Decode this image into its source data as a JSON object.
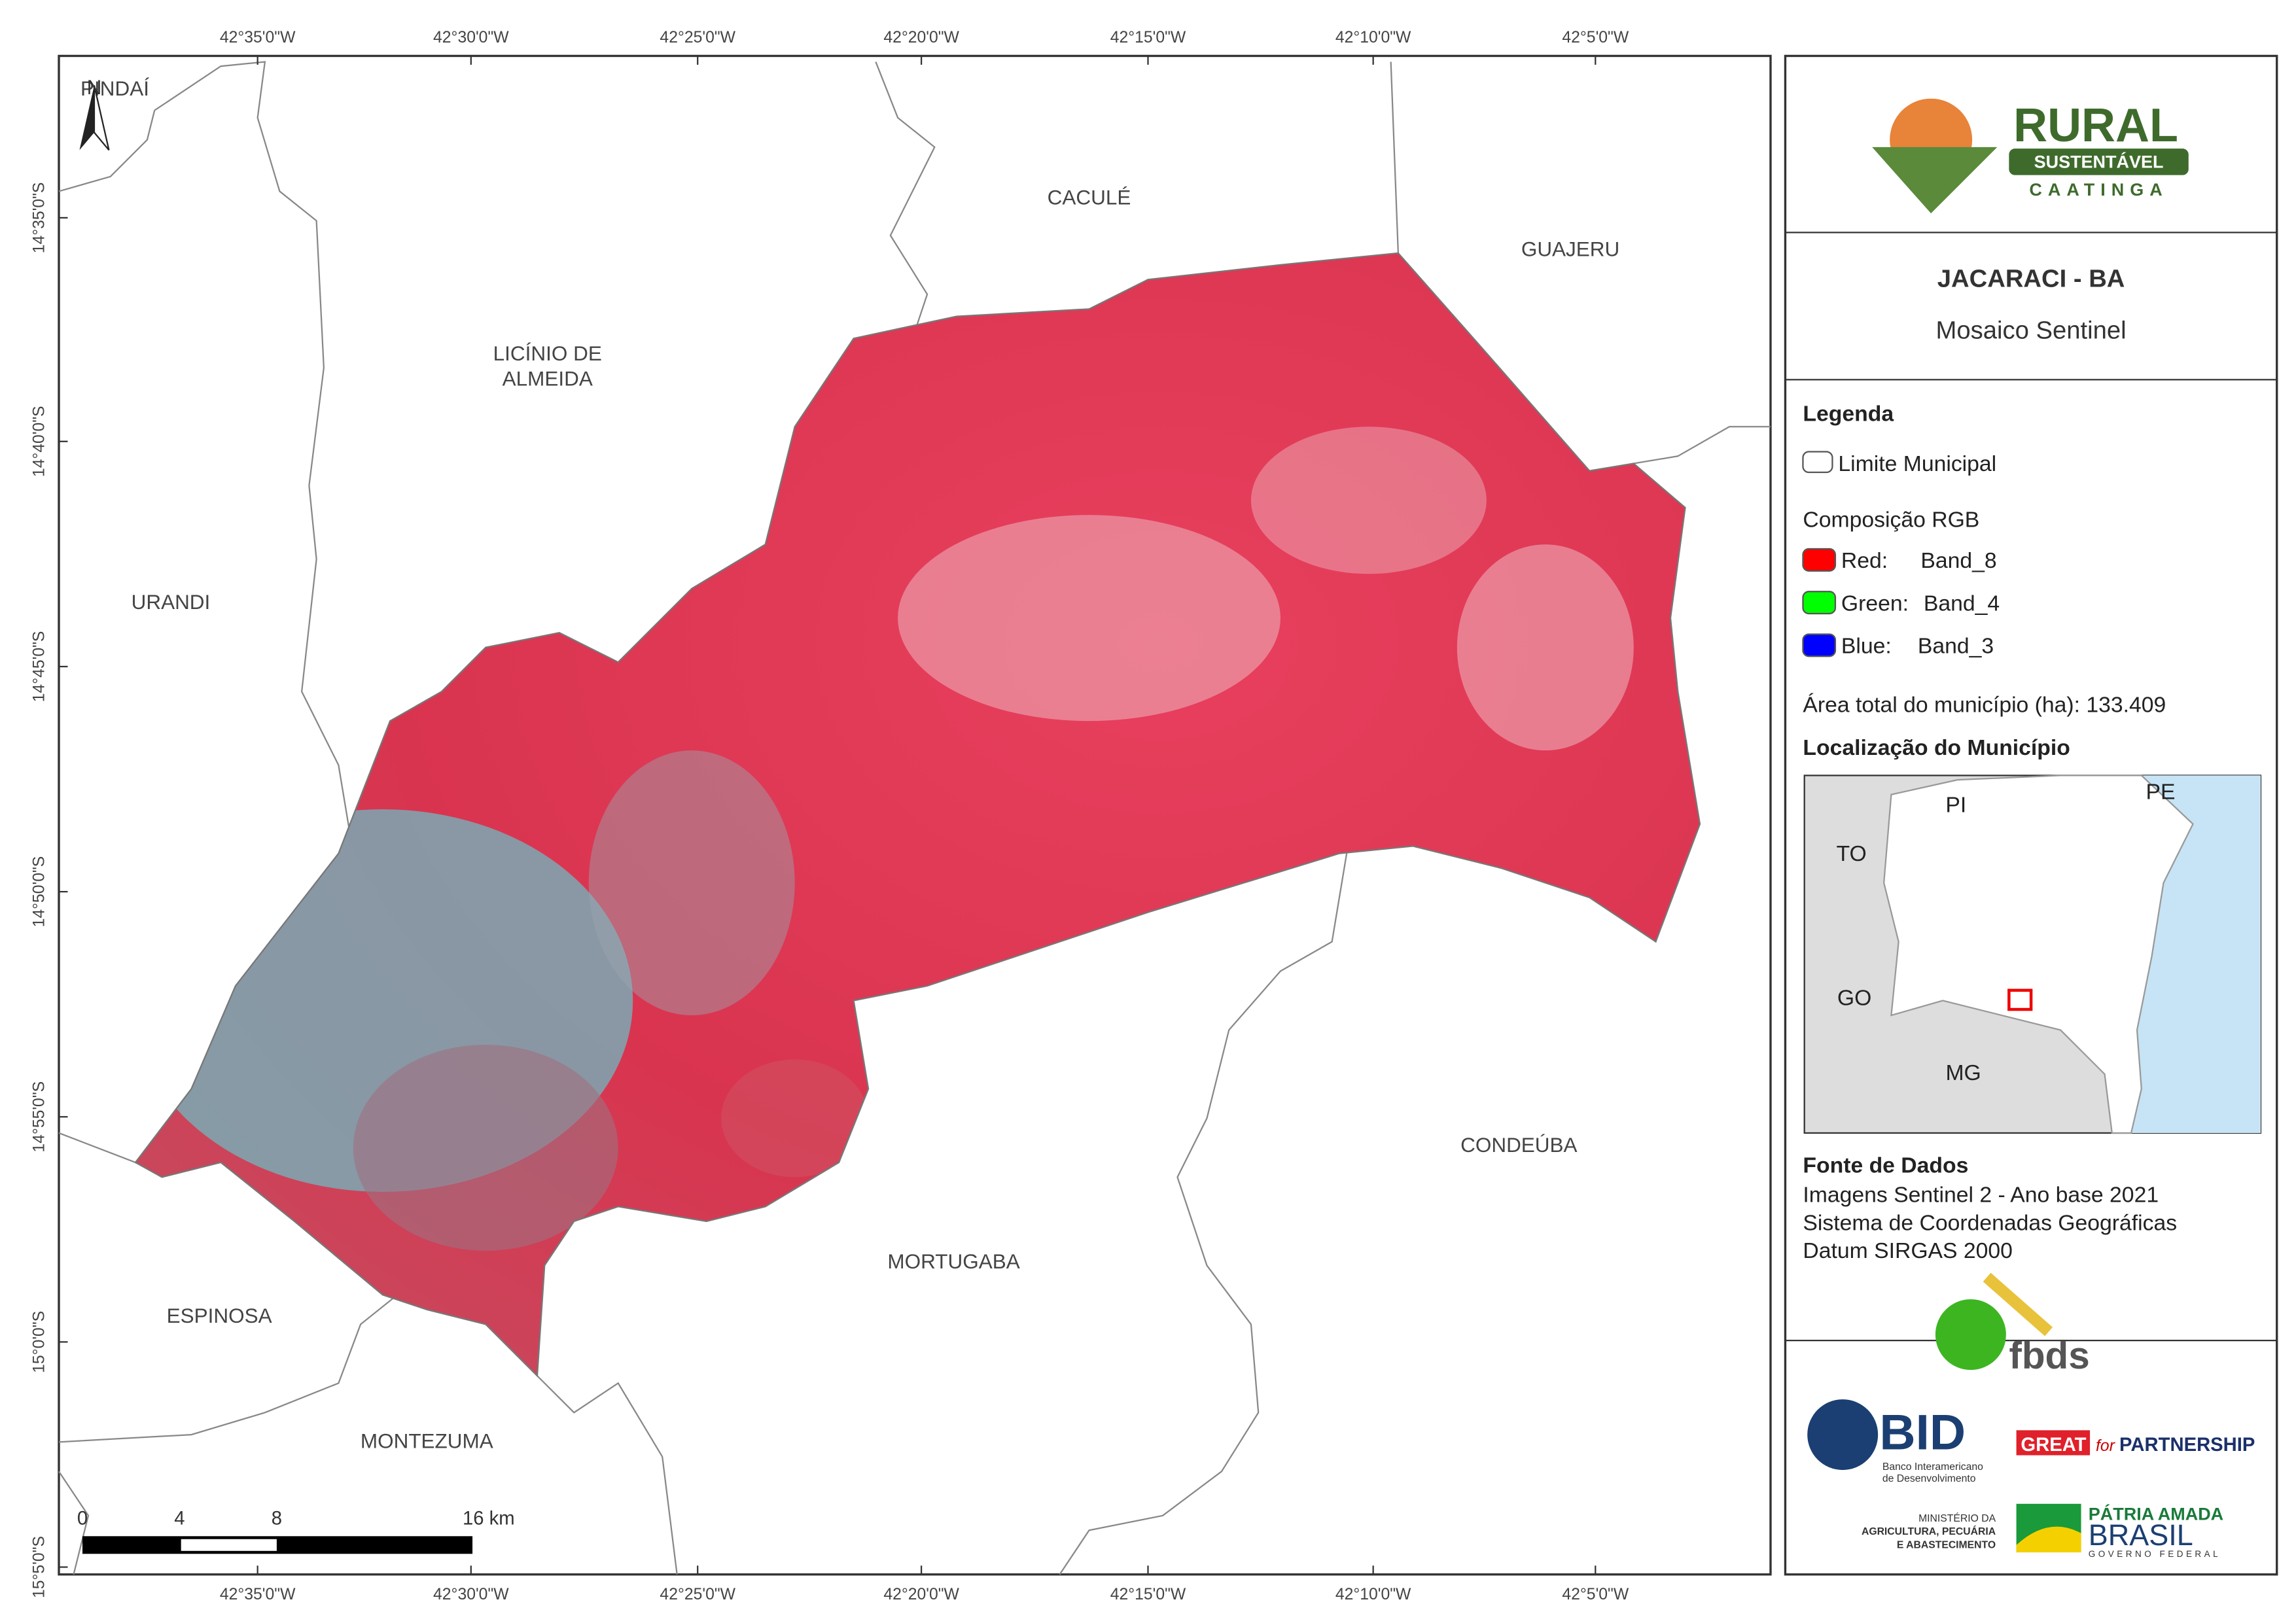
{
  "map": {
    "north": "N",
    "labels": [
      "PINDAÍ",
      "CACULÉ",
      "GUAJERU",
      "LICÍNIO DE",
      "ALMEIDA",
      "URANDI",
      "CONDEÚBA",
      "MORTUGABA",
      "ESPINOSA",
      "MONTEZUMA"
    ],
    "longitude_ticks": [
      "42°35'0\"W",
      "42°30'0\"W",
      "42°25'0\"W",
      "42°20'0\"W",
      "42°15'0\"W",
      "42°10'0\"W",
      "42°5'0\"W"
    ],
    "latitude_ticks": [
      "14°35'0\"S",
      "14°40'0\"S",
      "14°45'0\"S",
      "14°50'0\"S",
      "14°55'0\"S",
      "15°0'0\"S",
      "15°5'0\"S"
    ],
    "scale_bar": [
      "0",
      "4",
      "8",
      "16 km"
    ]
  },
  "header": {
    "logo": [
      "RURAL",
      "SUSTENTÁVEL",
      "CAATINGA"
    ],
    "title": "JACARACI - BA",
    "subtitle": "Mosaico Sentinel"
  },
  "legend": {
    "title": "Legenda",
    "boundary": "Limite Municipal",
    "rgb_title": "Composição RGB",
    "bands": [
      {
        "channel": "Red:",
        "band": "Band_8"
      },
      {
        "channel": "Green:",
        "band": "Band_4"
      },
      {
        "channel": "Blue:",
        "band": "Band_3"
      }
    ],
    "area": "Área total do município (ha): 133.409",
    "location_title": "Localização do Município",
    "inset_labels": [
      "PI",
      "PE",
      "TO",
      "GO",
      "MG"
    ]
  },
  "sources": {
    "title": "Fonte de Dados",
    "lines": [
      "Imagens Sentinel 2 - Ano base 2021",
      "Sistema de Coordenadas Geográficas",
      "Datum SIRGAS 2000"
    ]
  },
  "logos": {
    "fbds": "fbds",
    "bid": "BID",
    "bid_sub": [
      "Banco Interamericano",
      "de Desenvolvimento"
    ],
    "great": [
      "GREAT",
      "for",
      "PARTNERSHIP"
    ],
    "ministry": [
      "MINISTÉRIO DA",
      "AGRICULTURA, PECUÁRIA",
      "E ABASTECIMENTO"
    ],
    "brasil": [
      "PÁTRIA AMADA",
      "BRASIL",
      "GOVERNO FEDERAL"
    ]
  }
}
